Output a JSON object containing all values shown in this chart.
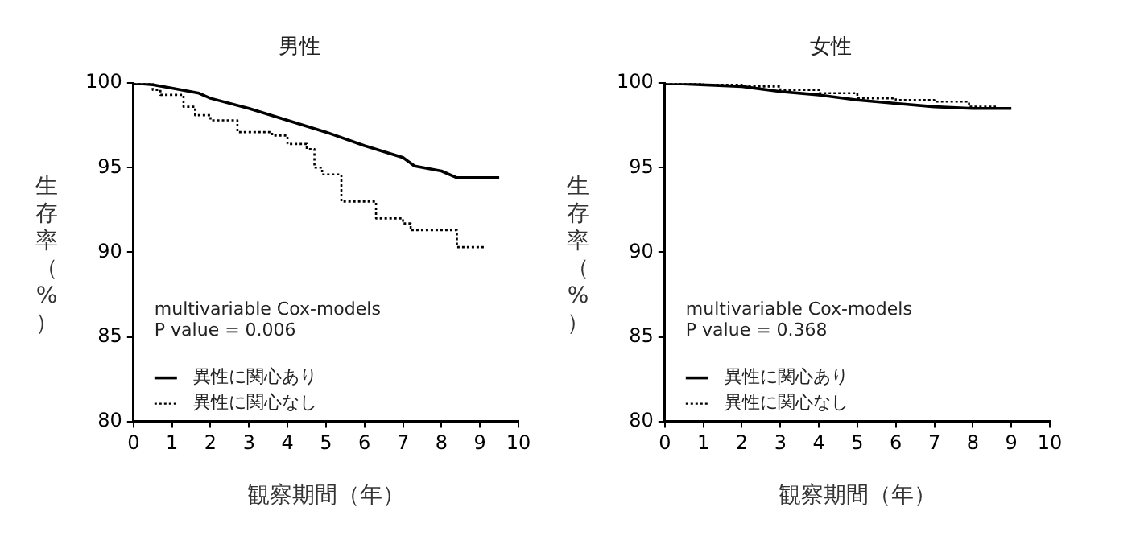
{
  "chart_data": [
    {
      "type": "line",
      "title": "男性",
      "xlabel": "観察期間（年）",
      "ylabel": "生存率（%）",
      "xlim": [
        0,
        10
      ],
      "xticks": [
        0,
        1,
        2,
        3,
        4,
        5,
        6,
        7,
        8,
        9,
        10
      ],
      "ylim": [
        80,
        100
      ],
      "yticks": [
        80,
        85,
        90,
        95,
        100
      ],
      "grid": false,
      "legend": "bottom left",
      "marker": "none",
      "annotations": [
        "multivariable Cox-models",
        "P value = 0.006"
      ],
      "series": [
        {
          "name": "異性に関心あり",
          "color": "#000000",
          "line_style": "solid",
          "x": [
            0,
            0.5,
            1,
            1.7,
            2,
            3,
            4,
            5,
            6,
            7,
            7.3,
            8,
            8.4,
            9.5
          ],
          "values": [
            100,
            99.9,
            99.7,
            99.4,
            99.1,
            98.5,
            97.8,
            97.1,
            96.3,
            95.6,
            95.1,
            94.8,
            94.4,
            94.4
          ]
        },
        {
          "name": "異性に関心なし",
          "type": "step",
          "color": "#000000",
          "line_style": "dotted",
          "x": [
            0,
            0.5,
            0.7,
            1.3,
            1.6,
            2,
            2.7,
            3.6,
            4,
            4.5,
            4.7,
            4.9,
            5.4,
            6.3,
            7,
            7.2,
            8.4,
            9.1
          ],
          "values": [
            100,
            99.6,
            99.3,
            98.6,
            98.1,
            97.8,
            97.1,
            96.9,
            96.4,
            96.1,
            95.0,
            94.6,
            93.0,
            92.0,
            91.7,
            91.3,
            90.3,
            90.3
          ]
        }
      ]
    },
    {
      "type": "line",
      "title": "女性",
      "xlabel": "観察期間（年）",
      "ylabel": "生存率（%）",
      "xlim": [
        0,
        10
      ],
      "xticks": [
        0,
        1,
        2,
        3,
        4,
        5,
        6,
        7,
        8,
        9,
        10
      ],
      "ylim": [
        80,
        100
      ],
      "yticks": [
        80,
        85,
        90,
        95,
        100
      ],
      "grid": false,
      "legend": "bottom left",
      "marker": "none",
      "annotations": [
        "multivariable Cox-models",
        "P value = 0.368"
      ],
      "series": [
        {
          "name": "異性に関心あり",
          "color": "#000000",
          "line_style": "solid",
          "x": [
            0,
            2,
            3,
            4,
            5,
            6,
            7,
            8,
            9
          ],
          "values": [
            100,
            99.8,
            99.5,
            99.3,
            99.0,
            98.8,
            98.6,
            98.5,
            98.5
          ]
        },
        {
          "name": "異性に関心なし",
          "type": "step",
          "color": "#000000",
          "line_style": "dotted",
          "x": [
            0,
            1,
            2,
            3,
            4,
            5,
            6,
            7,
            7.9,
            8.6
          ],
          "values": [
            100,
            99.9,
            99.8,
            99.6,
            99.4,
            99.1,
            99.0,
            98.9,
            98.6,
            98.6
          ]
        }
      ]
    }
  ]
}
